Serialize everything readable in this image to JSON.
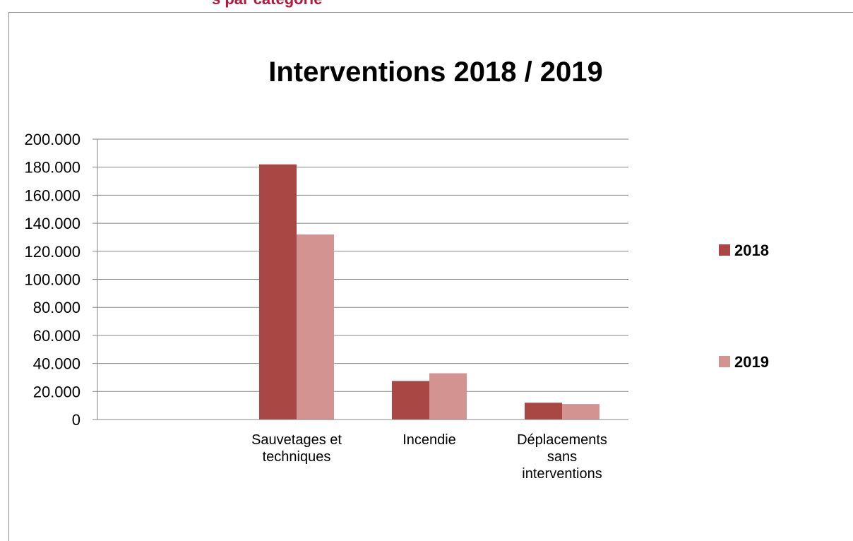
{
  "page": {
    "header_fragment": "s par catégorie"
  },
  "chart_data": {
    "type": "bar",
    "title": "Interventions 2018 / 2019",
    "xlabel": "",
    "ylabel": "",
    "ylim": [
      0,
      200000
    ],
    "y_ticks": [
      0,
      20000,
      40000,
      60000,
      80000,
      100000,
      120000,
      140000,
      160000,
      180000,
      200000
    ],
    "y_tick_labels": [
      "0",
      "20.000",
      "40.000",
      "60.000",
      "80.000",
      "100.000",
      "120.000",
      "140.000",
      "160.000",
      "180.000",
      "200.000"
    ],
    "grid": true,
    "legend_position": "right",
    "categories": [
      "",
      "Sauvetages et techniques",
      "Incendie",
      "Déplacements sans interventions"
    ],
    "category_label_lines": [
      [],
      [
        "Sauvetages et",
        "techniques"
      ],
      [
        "Incendie"
      ],
      [
        "Déplacements",
        "sans",
        "interventions"
      ]
    ],
    "series": [
      {
        "name": "2018",
        "color": "#a94744",
        "values": [
          0,
          182000,
          27500,
          12000
        ]
      },
      {
        "name": "2019",
        "color": "#d29391",
        "values": [
          0,
          132000,
          33000,
          11000
        ]
      }
    ]
  }
}
